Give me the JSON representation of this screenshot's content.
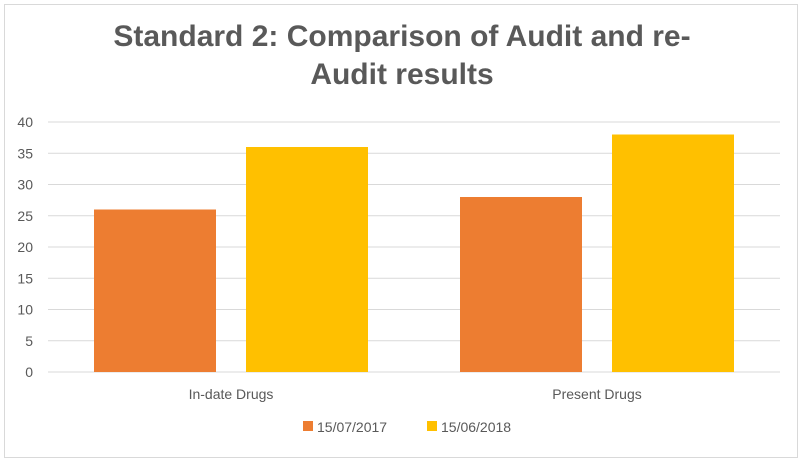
{
  "chart_data": {
    "type": "bar",
    "title_lines": [
      "Standard 2: Comparison of Audit and re-",
      "Audit results"
    ],
    "categories": [
      "In-date Drugs",
      "Present Drugs"
    ],
    "series": [
      {
        "name": "15/07/2017",
        "values": [
          26,
          28
        ],
        "color": "#ED7D31"
      },
      {
        "name": "15/06/2018",
        "values": [
          36,
          38
        ],
        "color": "#FFC000"
      }
    ],
    "xlabel": "",
    "ylabel": "",
    "ylim": [
      0,
      40
    ],
    "yticks": [
      0,
      5,
      10,
      15,
      20,
      25,
      30,
      35,
      40
    ],
    "grid": true,
    "legend_position": "bottom",
    "colors": {
      "gridline": "#d9d9d9",
      "text": "#595959"
    }
  }
}
